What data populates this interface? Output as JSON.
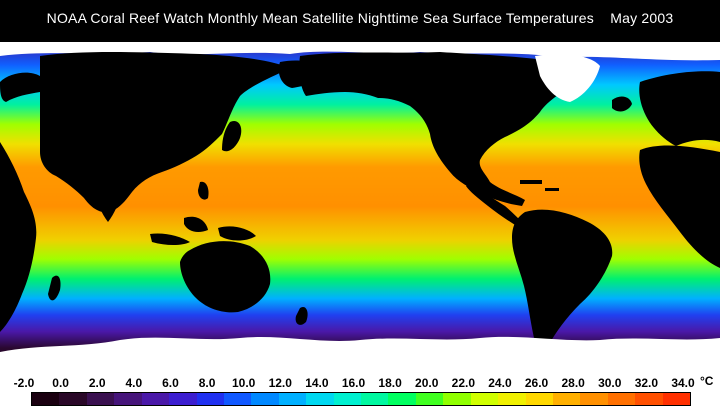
{
  "title": "NOAA Coral Reef Watch Monthly Mean Satellite Nighttime Sea Surface Temperatures    May 2003",
  "legend": {
    "unit": "°C",
    "tick_labels": [
      "-2.0",
      "0.0",
      "2.0",
      "4.0",
      "6.0",
      "8.0",
      "10.0",
      "12.0",
      "14.0",
      "16.0",
      "18.0",
      "20.0",
      "22.0",
      "24.0",
      "26.0",
      "28.0",
      "30.0",
      "32.0",
      "34.0"
    ],
    "swatch_colors": [
      "#1a0010",
      "#2a0828",
      "#3a1050",
      "#46147a",
      "#4a18a8",
      "#3c1ed0",
      "#2030f0",
      "#1058ff",
      "#0088ff",
      "#00b0ff",
      "#00d8f0",
      "#00f0d0",
      "#00f8a0",
      "#00ff60",
      "#40ff20",
      "#90ff00",
      "#d0ff00",
      "#f0f000",
      "#ffd800",
      "#ffb000",
      "#ff9000",
      "#ff7000",
      "#ff5000",
      "#ff3000"
    ]
  },
  "map": {
    "land_color": "#000000",
    "ice_color": "#ffffff"
  }
}
